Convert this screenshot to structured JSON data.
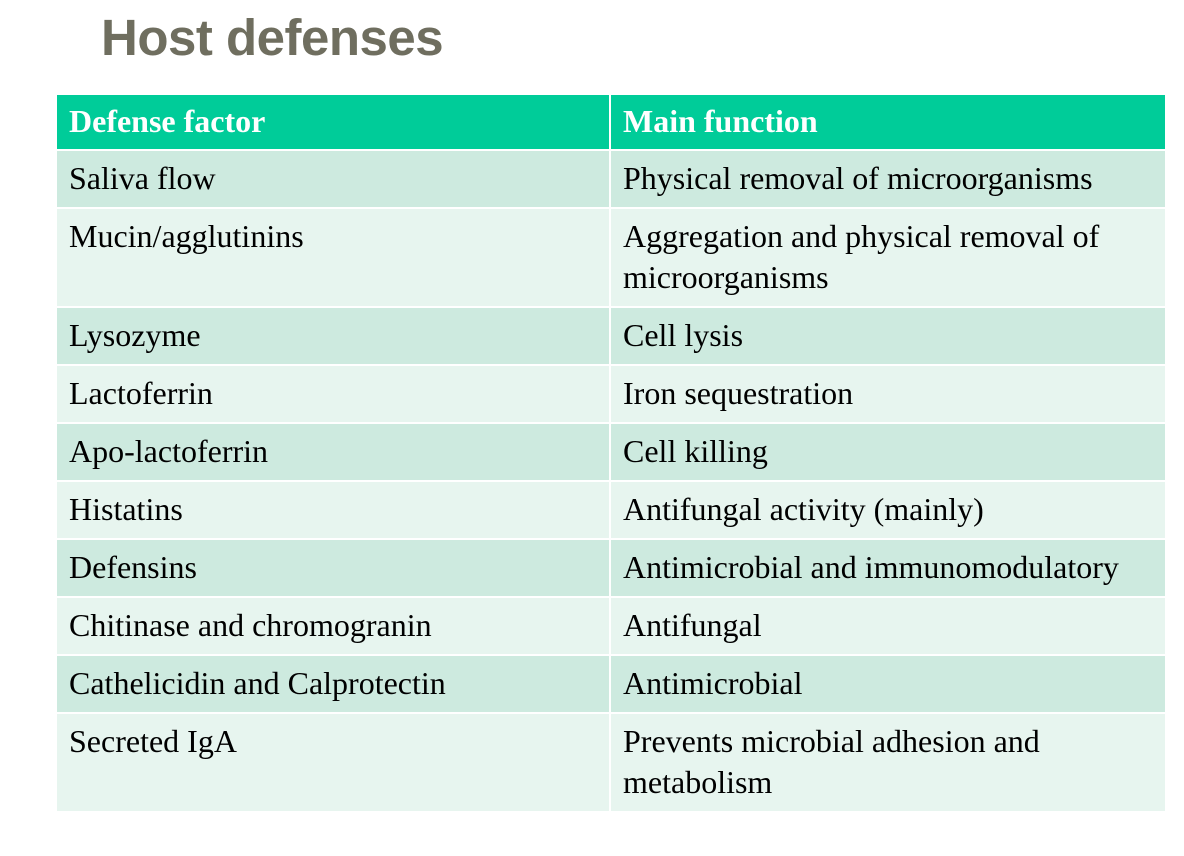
{
  "title": "Host defenses",
  "table": {
    "headers": [
      "Defense factor",
      "Main function"
    ],
    "rows": [
      [
        "Saliva flow",
        "Physical removal of microorganisms"
      ],
      [
        "Mucin/agglutinins",
        "Aggregation and physical removal of microorganisms"
      ],
      [
        "Lysozyme",
        "Cell lysis"
      ],
      [
        "Lactoferrin",
        "Iron sequestration"
      ],
      [
        "Apo-lactoferrin",
        "Cell killing"
      ],
      [
        "Histatins",
        "Antifungal activity (mainly)"
      ],
      [
        "Defensins",
        "Antimicrobial and immunomodulatory"
      ],
      [
        "Chitinase and chromogranin",
        "Antifungal"
      ],
      [
        "Cathelicidin and Calprotectin",
        "Antimicrobial"
      ],
      [
        "Secreted IgA",
        "Prevents microbial adhesion and metabolism"
      ]
    ]
  },
  "colors": {
    "title": "#6f6e5f",
    "header_bg": "#00cc99",
    "row_dark": "#cdeadf",
    "row_light": "#e7f5ef"
  }
}
